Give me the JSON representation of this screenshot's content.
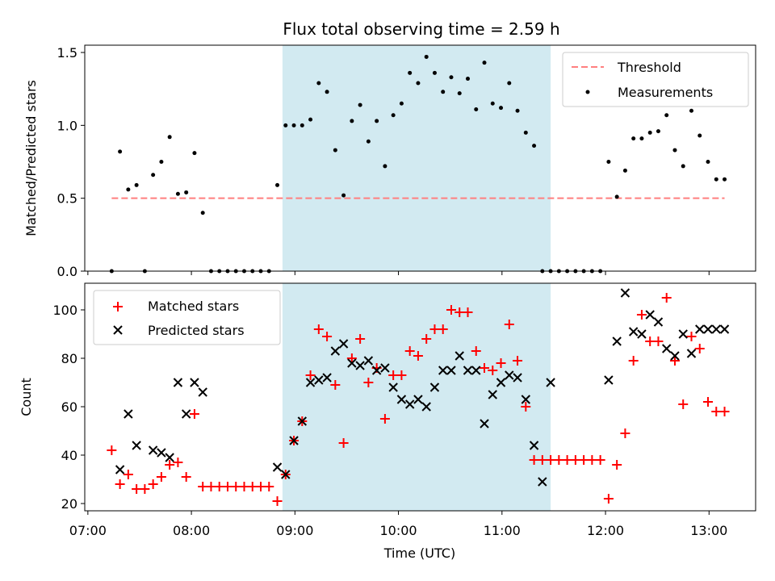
{
  "chart_data": {
    "title": "Flux total observing time = 2.59 h",
    "xlabel": "Time (UTC)",
    "x_unit": "hours UTC",
    "xlim": [
      6.97,
      13.45
    ],
    "x_ticks": [
      7,
      8,
      9,
      10,
      11,
      12,
      13
    ],
    "x_tick_labels": [
      "07:00",
      "08:00",
      "09:00",
      "10:00",
      "11:00",
      "12:00",
      "13:00"
    ],
    "shaded_interval": [
      8.88,
      11.47
    ],
    "colors": {
      "shade": "#add8e6",
      "threshold": "#ff7f7f",
      "measurement": "#000000",
      "matched": "#ff0000",
      "predicted": "#000000"
    },
    "panels": [
      {
        "type": "scatter",
        "ylabel": "Matched/Predicted stars",
        "ylim": [
          0,
          1.55
        ],
        "y_ticks": [
          0,
          0.5,
          1,
          1.5
        ],
        "y_tick_labels": [
          "0.0",
          "0.5",
          "1.0",
          "1.5"
        ],
        "legend_position": "top-right",
        "threshold": {
          "name": "Threshold",
          "value": 0.5,
          "x_range": [
            7.23,
            13.15
          ]
        },
        "series": [
          {
            "name": "Measurements",
            "x": [
              7.23,
              7.31,
              7.39,
              7.47,
              7.55,
              7.63,
              7.71,
              7.79,
              7.87,
              7.95,
              8.03,
              8.11,
              8.19,
              8.27,
              8.35,
              8.43,
              8.51,
              8.59,
              8.67,
              8.75,
              8.83,
              8.91,
              8.99,
              9.07,
              9.15,
              9.23,
              9.31,
              9.39,
              9.47,
              9.55,
              9.63,
              9.71,
              9.79,
              9.87,
              9.95,
              10.03,
              10.11,
              10.19,
              10.27,
              10.35,
              10.43,
              10.51,
              10.59,
              10.67,
              10.75,
              10.83,
              10.91,
              10.99,
              11.07,
              11.15,
              11.23,
              11.31,
              11.39,
              11.47,
              11.55,
              11.63,
              11.71,
              11.79,
              11.87,
              11.95,
              12.03,
              12.11,
              12.19,
              12.27,
              12.35,
              12.43,
              12.51,
              12.59,
              12.67,
              12.75,
              12.83,
              12.91,
              12.99,
              13.07,
              13.15
            ],
            "y": [
              0,
              0.82,
              0.56,
              0.59,
              0,
              0.66,
              0.75,
              0.92,
              0.53,
              0.54,
              0.81,
              0.4,
              0,
              0,
              0,
              0,
              0,
              0,
              0,
              0,
              0.59,
              1.0,
              1.0,
              1.0,
              1.04,
              1.29,
              1.23,
              0.83,
              0.52,
              1.03,
              1.14,
              0.89,
              1.03,
              0.72,
              1.07,
              1.15,
              1.36,
              1.29,
              1.47,
              1.36,
              1.23,
              1.33,
              1.22,
              1.32,
              1.11,
              1.43,
              1.15,
              1.12,
              1.29,
              1.1,
              0.95,
              0.86,
              0,
              0,
              0,
              0,
              0,
              0,
              0,
              0,
              0.75,
              0.51,
              0.69,
              0.91,
              0.91,
              0.95,
              0.96,
              1.07,
              0.83,
              0.72,
              1.1,
              0.93,
              0.75,
              0.63,
              0.63
            ]
          }
        ]
      },
      {
        "type": "scatter",
        "ylabel": "Count",
        "ylim": [
          17,
          111
        ],
        "y_ticks": [
          20,
          40,
          60,
          80,
          100
        ],
        "y_tick_labels": [
          "20",
          "40",
          "60",
          "80",
          "100"
        ],
        "legend_position": "top-left",
        "series": [
          {
            "name": "Matched stars",
            "marker": "plus",
            "x": [
              7.23,
              7.31,
              7.39,
              7.47,
              7.55,
              7.63,
              7.71,
              7.79,
              7.87,
              7.95,
              8.03,
              8.11,
              8.19,
              8.27,
              8.35,
              8.43,
              8.51,
              8.59,
              8.67,
              8.75,
              8.83,
              8.91,
              8.99,
              9.07,
              9.15,
              9.23,
              9.31,
              9.39,
              9.47,
              9.55,
              9.63,
              9.71,
              9.79,
              9.87,
              9.95,
              10.03,
              10.11,
              10.19,
              10.27,
              10.35,
              10.43,
              10.51,
              10.59,
              10.67,
              10.75,
              10.83,
              10.91,
              10.99,
              11.07,
              11.15,
              11.23,
              11.31,
              11.39,
              11.47,
              11.55,
              11.63,
              11.71,
              11.79,
              11.87,
              11.95,
              12.03,
              12.11,
              12.19,
              12.27,
              12.35,
              12.43,
              12.51,
              12.59,
              12.67,
              12.75,
              12.83,
              12.91,
              12.99,
              13.07,
              13.15
            ],
            "y": [
              42,
              28,
              32,
              26,
              26,
              28,
              31,
              36,
              37,
              31,
              57,
              27,
              27,
              27,
              27,
              27,
              27,
              27,
              27,
              27,
              21,
              32,
              46,
              54,
              73,
              92,
              89,
              69,
              45,
              80,
              88,
              70,
              76,
              55,
              73,
              73,
              83,
              81,
              88,
              92,
              92,
              100,
              99,
              99,
              83,
              76,
              75,
              78,
              94,
              79,
              60,
              38,
              38,
              38,
              38,
              38,
              38,
              38,
              38,
              38,
              22,
              36,
              49,
              79,
              98,
              87,
              87,
              105,
              79,
              61,
              89,
              84,
              62,
              58,
              58
            ]
          },
          {
            "name": "Predicted stars",
            "marker": "x",
            "x": [
              7.31,
              7.39,
              7.47,
              7.63,
              7.71,
              7.79,
              7.87,
              7.95,
              8.03,
              8.11,
              8.83,
              8.91,
              8.99,
              9.07,
              9.15,
              9.23,
              9.31,
              9.39,
              9.47,
              9.55,
              9.63,
              9.71,
              9.79,
              9.87,
              9.95,
              10.03,
              10.11,
              10.19,
              10.27,
              10.35,
              10.43,
              10.51,
              10.59,
              10.67,
              10.75,
              10.83,
              10.91,
              10.99,
              11.07,
              11.15,
              11.23,
              11.31,
              11.39,
              11.47,
              12.03,
              12.11,
              12.19,
              12.27,
              12.35,
              12.43,
              12.51,
              12.59,
              12.67,
              12.75,
              12.83,
              12.91,
              12.99,
              13.07,
              13.15
            ],
            "y": [
              34,
              57,
              44,
              42,
              41,
              39,
              70,
              57,
              70,
              66,
              35,
              32,
              46,
              54,
              70,
              71,
              72,
              83,
              86,
              78,
              77,
              79,
              75,
              76,
              68,
              63,
              61,
              63,
              60,
              68,
              75,
              75,
              81,
              75,
              75,
              53,
              65,
              70,
              73,
              72,
              63,
              44,
              29,
              70,
              71,
              87,
              107,
              91,
              90,
              98,
              95,
              84,
              81,
              90,
              82,
              92,
              92,
              92,
              92
            ]
          }
        ]
      }
    ]
  }
}
